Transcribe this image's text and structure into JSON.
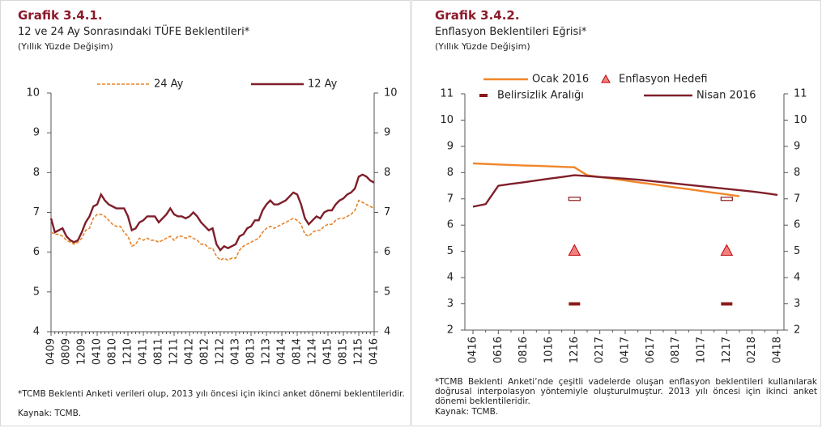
{
  "chart_data": [
    {
      "type": "line",
      "title": "Grafik 3.4.1.",
      "subtitle": "12 ve 24 Ay Sonrasındaki TÜFE Beklentileri*",
      "unit": "(Yıllık Yüzde Değişim)",
      "note": "*TCMB Beklenti Anketi verileri olup, 2013 yılı öncesi için ikinci anket dönemi beklentileridir.",
      "source": "Kaynak: TCMB.",
      "categories": [
        "0409",
        null,
        null,
        null,
        "0809",
        null,
        null,
        null,
        "1209",
        null,
        null,
        null,
        "0410",
        null,
        null,
        null,
        "0810",
        null,
        null,
        null,
        "1210",
        null,
        null,
        null,
        "0411",
        null,
        null,
        null,
        "0811",
        null,
        null,
        null,
        "1211",
        null,
        null,
        null,
        "0412",
        null,
        null,
        null,
        "0812",
        null,
        null,
        null,
        "1212",
        null,
        null,
        null,
        "0413",
        null,
        null,
        null,
        "0813",
        null,
        null,
        null,
        "1213",
        null,
        null,
        null,
        "0414",
        null,
        null,
        null,
        "0814",
        null,
        null,
        null,
        "1214",
        null,
        null,
        null,
        "0415",
        null,
        null,
        null,
        "0815",
        null,
        null,
        null,
        "1215",
        null,
        null,
        null,
        "0416"
      ],
      "series": [
        {
          "name": "24 Ay",
          "color": "#e8842a",
          "dashed": true,
          "type": "line",
          "values": [
            6.5,
            6.45,
            6.45,
            6.4,
            6.3,
            6.25,
            6.2,
            6.25,
            6.35,
            6.55,
            6.6,
            6.85,
            6.95,
            6.95,
            6.9,
            6.8,
            6.7,
            6.65,
            6.65,
            6.5,
            6.4,
            6.15,
            6.2,
            6.35,
            6.3,
            6.35,
            6.3,
            6.3,
            6.25,
            6.3,
            6.35,
            6.4,
            6.3,
            6.4,
            6.4,
            6.35,
            6.4,
            6.35,
            6.3,
            6.2,
            6.2,
            6.1,
            6.1,
            5.9,
            5.8,
            5.85,
            5.8,
            5.85,
            5.85,
            6.05,
            6.15,
            6.2,
            6.25,
            6.3,
            6.35,
            6.5,
            6.6,
            6.65,
            6.6,
            6.65,
            6.7,
            6.75,
            6.8,
            6.85,
            6.8,
            6.7,
            6.45,
            6.4,
            6.5,
            6.55,
            6.55,
            6.65,
            6.7,
            6.7,
            6.8,
            6.85,
            6.85,
            6.9,
            6.95,
            7.05,
            7.3,
            7.25,
            7.2,
            7.15,
            7.1
          ]
        },
        {
          "name": "12 Ay",
          "color": "#7f1f2a",
          "dashed": false,
          "type": "line",
          "values": [
            6.85,
            6.5,
            6.55,
            6.6,
            6.4,
            6.3,
            6.25,
            6.3,
            6.5,
            6.75,
            6.9,
            7.15,
            7.2,
            7.45,
            7.3,
            7.2,
            7.15,
            7.1,
            7.1,
            7.1,
            6.9,
            6.55,
            6.6,
            6.75,
            6.8,
            6.9,
            6.9,
            6.9,
            6.75,
            6.85,
            6.95,
            7.1,
            6.95,
            6.9,
            6.9,
            6.85,
            6.9,
            7.0,
            6.9,
            6.75,
            6.65,
            6.55,
            6.6,
            6.2,
            6.05,
            6.15,
            6.1,
            6.15,
            6.2,
            6.4,
            6.45,
            6.6,
            6.65,
            6.8,
            6.8,
            7.05,
            7.2,
            7.3,
            7.2,
            7.2,
            7.25,
            7.3,
            7.4,
            7.5,
            7.45,
            7.2,
            6.85,
            6.7,
            6.8,
            6.9,
            6.85,
            7.0,
            7.05,
            7.05,
            7.2,
            7.3,
            7.35,
            7.45,
            7.5,
            7.6,
            7.9,
            7.95,
            7.9,
            7.8,
            7.75
          ]
        }
      ],
      "ylim": [
        4,
        10
      ],
      "yticks": [
        4,
        5,
        6,
        7,
        8,
        9,
        10
      ],
      "y2lim": [
        4,
        10
      ],
      "y2ticks": [
        4,
        5,
        6,
        7,
        8,
        9,
        10
      ],
      "grid": false
    },
    {
      "type": "line",
      "title": "Grafik 3.4.2.",
      "subtitle": "Enflasyon Beklentileri Eğrisi*",
      "unit": "(Yıllık Yüzde Değişim)",
      "note": "*TCMB Beklenti Anketi’nde çeşitli vadelerde oluşan enflasyon beklentileri kullanılarak doğrusal interpolasyon yöntemiyle oluşturulmuştur. 2013 yılı öncesi için ikinci anket dönemi beklentileridir.",
      "source": "Kaynak: TCMB.",
      "categories": [
        "0416",
        null,
        "0616",
        null,
        "0816",
        null,
        "1016",
        null,
        "1216",
        null,
        "0217",
        null,
        "0417",
        null,
        "0617",
        null,
        "0817",
        null,
        "1017",
        null,
        "1217",
        null,
        "0218",
        null,
        "0418"
      ],
      "series": [
        {
          "name": "Ocak 2016",
          "color": "#f0862a",
          "type": "line",
          "dashed": false,
          "values": [
            8.35,
            8.33,
            8.31,
            8.29,
            8.27,
            8.26,
            8.24,
            8.22,
            8.2,
            7.9,
            7.83,
            7.77,
            7.7,
            7.63,
            7.57,
            7.5,
            7.43,
            7.37,
            7.3,
            7.23,
            7.17,
            7.1,
            null,
            null,
            null
          ]
        },
        {
          "name": "Enflasyon Hedefi",
          "color": "#f08080",
          "type": "marker",
          "x": [
            "1216",
            "1217"
          ],
          "values": [
            5,
            5
          ]
        },
        {
          "name": "Belirsizlik Aralığı",
          "color": "#8b1a1a",
          "type": "range",
          "x": [
            "1216",
            "1217"
          ],
          "low": [
            3,
            3
          ],
          "high": [
            7,
            7
          ]
        },
        {
          "name": "Nisan 2016",
          "color": "#7f1f2a",
          "type": "line",
          "dashed": false,
          "values": [
            6.7,
            6.8,
            7.5,
            7.57,
            7.63,
            7.7,
            7.77,
            7.83,
            7.9,
            7.87,
            7.83,
            7.8,
            7.77,
            7.73,
            7.68,
            7.63,
            7.58,
            7.53,
            7.48,
            7.43,
            7.38,
            7.33,
            7.28,
            7.22,
            7.15
          ]
        }
      ],
      "ylim": [
        2,
        11
      ],
      "yticks": [
        2,
        3,
        4,
        5,
        6,
        7,
        8,
        9,
        10,
        11
      ],
      "y2lim": [
        2,
        11
      ],
      "y2ticks": [
        2,
        3,
        4,
        5,
        6,
        7,
        8,
        9,
        10,
        11
      ],
      "grid": false
    }
  ]
}
